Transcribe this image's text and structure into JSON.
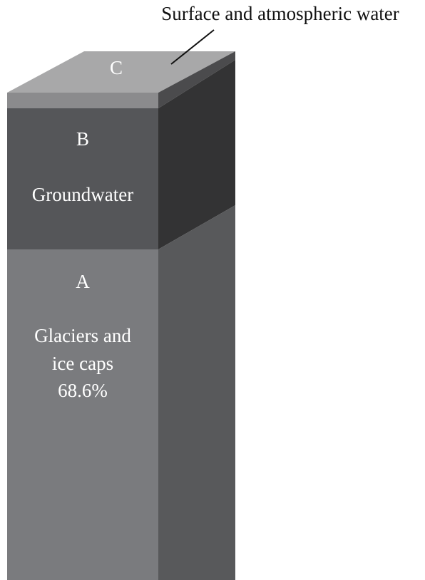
{
  "callout": "Surface and atmospheric water",
  "segments": [
    {
      "letter": "C"
    },
    {
      "letter": "B",
      "label": "Groundwater"
    },
    {
      "letter": "A",
      "label_lines": [
        "Glaciers and",
        "ice caps"
      ],
      "percent": "68.6%"
    }
  ]
}
